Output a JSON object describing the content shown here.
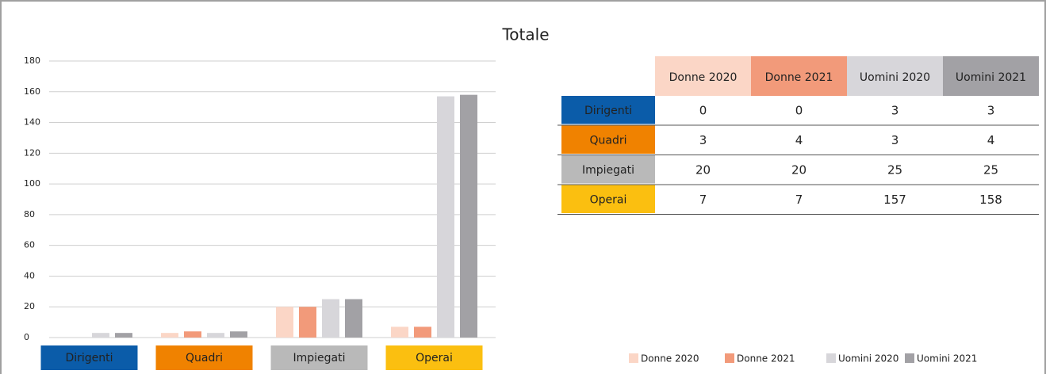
{
  "chart_data": {
    "type": "bar",
    "title": "Totale",
    "categories": [
      "Dirigenti",
      "Quadri",
      "Impiegati",
      "Operai"
    ],
    "category_colors": [
      "#0b5ca9",
      "#f08200",
      "#b9b9b9",
      "#fbbf10"
    ],
    "series": [
      {
        "name": "Donne 2020",
        "color": "#fbd6c6",
        "values": [
          0,
          3,
          20,
          7
        ]
      },
      {
        "name": "Donne 2021",
        "color": "#f29a7a",
        "values": [
          0,
          4,
          20,
          7
        ]
      },
      {
        "name": "Uomini 2020",
        "color": "#d7d6da",
        "values": [
          3,
          3,
          25,
          157
        ]
      },
      {
        "name": "Uomini 2021",
        "color": "#a2a1a5",
        "values": [
          3,
          4,
          25,
          158
        ]
      }
    ],
    "ylim": [
      0,
      180
    ],
    "yticks": [
      0,
      20,
      40,
      60,
      80,
      100,
      120,
      140,
      160,
      180
    ],
    "grid": true
  }
}
